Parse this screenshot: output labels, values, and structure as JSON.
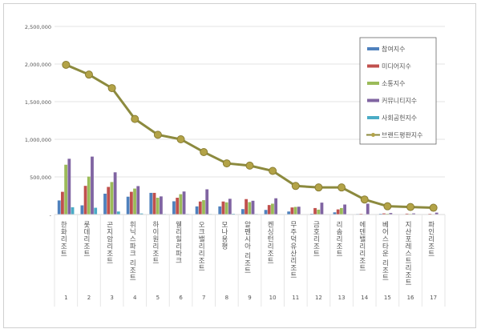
{
  "chart_data": {
    "type": "bar+line",
    "title": "",
    "xlabel": "",
    "ylabel": "",
    "ylim": [
      0,
      2500000
    ],
    "yticks": [
      0,
      500000,
      1000000,
      1500000,
      2000000,
      2500000
    ],
    "ytick_labels": [
      "-",
      "500,000",
      "1,000,000",
      "1,500,000",
      "2,000,000",
      "2,500,000"
    ],
    "grid": true,
    "legend_position": "top-right",
    "ranks": [
      "1",
      "2",
      "3",
      "4",
      "5",
      "6",
      "7",
      "8",
      "9",
      "10",
      "11",
      "12",
      "13",
      "14",
      "15",
      "16",
      "17"
    ],
    "categories": [
      "한화리조트",
      "롯데리조트",
      "곤지암리조트",
      "휘닉스파크 리조트",
      "하이원리조트",
      "웰리힐리파크",
      "오크밸리리조트",
      "모나용평",
      "알펜시아 리조트",
      "켄싱턴리조트",
      "무주덕유산리조트",
      "금호리조트",
      "리솜리조트",
      "에덴밸리리조트",
      "베어스타운 리조트",
      "지산포레스트리조트",
      "파인리조트"
    ],
    "series": [
      {
        "name": "참여지수",
        "type": "bar",
        "color": "#4f81bd",
        "values": [
          187000,
          122000,
          277000,
          237000,
          288000,
          176000,
          108000,
          108000,
          72000,
          61000,
          40000,
          10000,
          29000,
          7000,
          10000,
          5000,
          5000
        ]
      },
      {
        "name": "미디어지수",
        "type": "bar",
        "color": "#c0504d",
        "values": [
          302000,
          381000,
          367000,
          302000,
          288000,
          223000,
          173000,
          173000,
          205000,
          126000,
          94000,
          86000,
          68000,
          10000,
          15000,
          12000,
          10000
        ]
      },
      {
        "name": "소통지수",
        "type": "bar",
        "color": "#9bbb59",
        "values": [
          662000,
          504000,
          432000,
          345000,
          223000,
          270000,
          191000,
          162000,
          165000,
          144000,
          101000,
          65000,
          86000,
          5000,
          10000,
          8000,
          5000
        ]
      },
      {
        "name": "커뮤니티지수",
        "type": "bar",
        "color": "#8064a2",
        "values": [
          741000,
          770000,
          561000,
          378000,
          241000,
          306000,
          335000,
          209000,
          183000,
          216000,
          104000,
          158000,
          133000,
          144000,
          20000,
          15000,
          25000
        ]
      },
      {
        "name": "사회공헌지수",
        "type": "bar",
        "color": "#4bacc6",
        "values": [
          97000,
          90000,
          40000,
          14000,
          7000,
          7000,
          7000,
          10000,
          7000,
          5000,
          3000,
          3000,
          3000,
          2000,
          2000,
          2000,
          2000
        ]
      },
      {
        "name": "브랜드평판지수",
        "type": "line",
        "color": "#8c8a3e",
        "values": [
          1990000,
          1860000,
          1680000,
          1270000,
          1060000,
          1000000,
          830000,
          680000,
          650000,
          580000,
          380000,
          360000,
          360000,
          200000,
          110000,
          100000,
          90000
        ]
      }
    ]
  }
}
